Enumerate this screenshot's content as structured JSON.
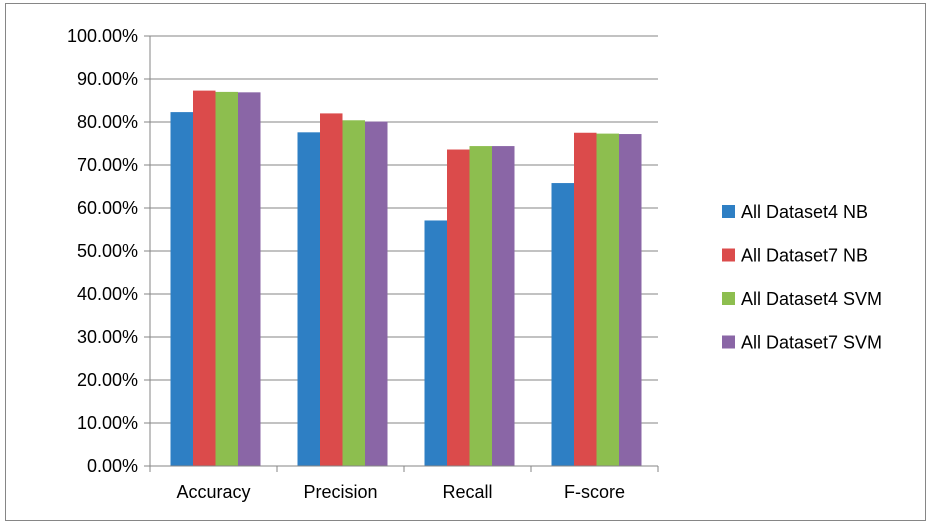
{
  "chart_data": {
    "type": "bar",
    "title": "",
    "xlabel": "",
    "ylabel": "",
    "categories": [
      "Accuracy",
      "Precision",
      "Recall",
      "F-score"
    ],
    "series": [
      {
        "name": "All Dataset4 NB",
        "color": "#2E7FC4",
        "values": [
          82.3,
          77.6,
          57.1,
          65.8
        ]
      },
      {
        "name": "All Dataset7 NB",
        "color": "#DB4B4B",
        "values": [
          87.3,
          82.0,
          73.6,
          77.5
        ]
      },
      {
        "name": "All Dataset4 SVM",
        "color": "#8DBE4F",
        "values": [
          87.0,
          80.4,
          74.4,
          77.3
        ]
      },
      {
        "name": "All Dataset7 SVM",
        "color": "#8A66A6",
        "values": [
          86.9,
          80.1,
          74.4,
          77.2
        ]
      }
    ],
    "ylim": [
      0,
      100
    ],
    "ytick_step": 10,
    "ytick_labels": [
      "0.00%",
      "10.00%",
      "20.00%",
      "30.00%",
      "40.00%",
      "50.00%",
      "60.00%",
      "70.00%",
      "80.00%",
      "90.00%",
      "100.00%"
    ],
    "grid": true,
    "legend_position": "right"
  }
}
